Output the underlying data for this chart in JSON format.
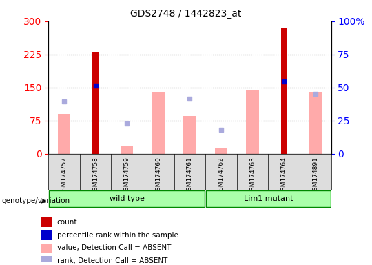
{
  "title": "GDS2748 / 1442823_at",
  "samples": [
    "GSM174757",
    "GSM174758",
    "GSM174759",
    "GSM174760",
    "GSM174761",
    "GSM174762",
    "GSM174763",
    "GSM174764",
    "GSM174891"
  ],
  "groups": {
    "wild type": [
      "GSM174757",
      "GSM174758",
      "GSM174759",
      "GSM174760",
      "GSM174761"
    ],
    "Lim1 mutant": [
      "GSM174762",
      "GSM174763",
      "GSM174764",
      "GSM174891"
    ]
  },
  "count_values": [
    null,
    230,
    null,
    null,
    null,
    null,
    null,
    285,
    null
  ],
  "count_rank": [
    null,
    155,
    null,
    null,
    null,
    null,
    null,
    163,
    null
  ],
  "absent_value": [
    90,
    null,
    18,
    140,
    85,
    13,
    145,
    null,
    140
  ],
  "absent_rank": [
    118,
    null,
    68,
    null,
    125,
    55,
    null,
    null,
    135
  ],
  "ylim": [
    0,
    300
  ],
  "yticks_left": [
    0,
    75,
    150,
    225,
    300
  ],
  "yticks_right": [
    0,
    25,
    50,
    75,
    100
  ],
  "bar_width": 0.4,
  "count_color": "#cc0000",
  "count_rank_color": "#0000cc",
  "absent_value_color": "#ffaaaa",
  "absent_rank_color": "#aaaadd",
  "group_color": "#aaffaa",
  "group_border": "#008800",
  "right_tick_labels": [
    "0",
    "25",
    "50",
    "75",
    "100%"
  ],
  "legend_items": [
    {
      "label": "count",
      "color": "#cc0000"
    },
    {
      "label": "percentile rank within the sample",
      "color": "#0000cc"
    },
    {
      "label": "value, Detection Call = ABSENT",
      "color": "#ffaaaa"
    },
    {
      "label": "rank, Detection Call = ABSENT",
      "color": "#aaaadd"
    }
  ]
}
